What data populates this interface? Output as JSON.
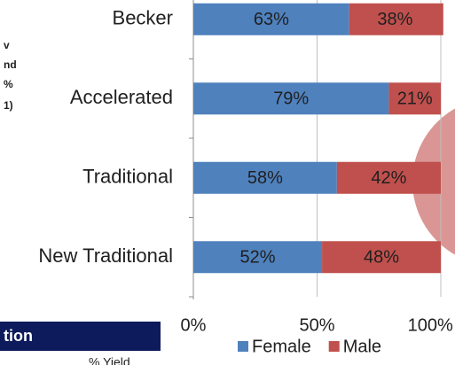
{
  "slide_fragments": [
    "v",
    "nd",
    "%",
    "1)",
    "tion",
    "% Yield"
  ],
  "chart_data": {
    "type": "stacked-barh",
    "categories": [
      "Becker",
      "Accelerated",
      "Traditional",
      "New Traditional"
    ],
    "series": [
      {
        "name": "Female",
        "color": "#4f81bd",
        "values": [
          63,
          79,
          58,
          52
        ],
        "value_labels": [
          "63%",
          "79%",
          "58%",
          "52%"
        ]
      },
      {
        "name": "Male",
        "color": "#c0504d",
        "values": [
          38,
          21,
          42,
          48
        ],
        "value_labels": [
          "38%",
          "21%",
          "42%",
          "48%"
        ]
      }
    ],
    "xlim": [
      0,
      100
    ],
    "xticks": [
      {
        "value": 0,
        "label": "0%"
      },
      {
        "value": 50,
        "label": "50%"
      },
      {
        "value": 100,
        "label": "100%"
      }
    ],
    "grid": true,
    "legend": "bottom"
  }
}
